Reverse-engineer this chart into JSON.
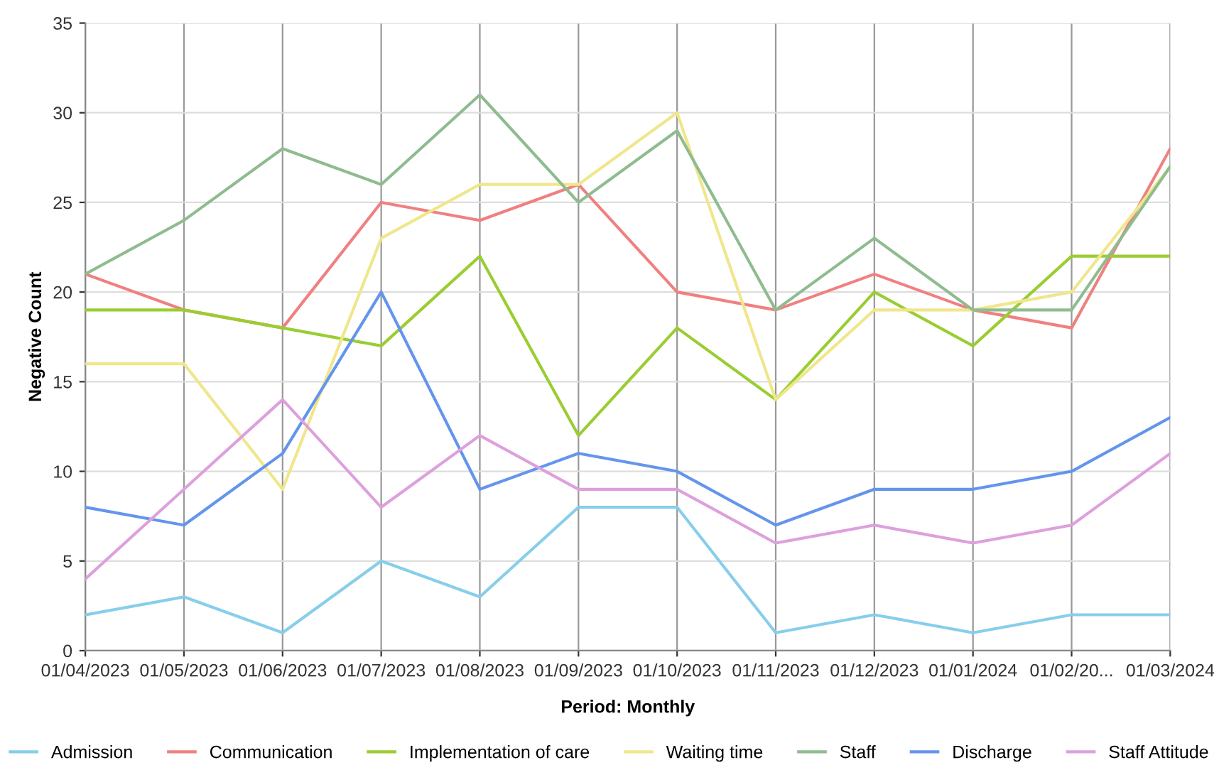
{
  "chart_data": {
    "type": "line",
    "xlabel": "Period: Monthly",
    "ylabel": "Negative Count",
    "categories": [
      "01/04/2023",
      "01/05/2023",
      "01/06/2023",
      "01/07/2023",
      "01/08/2023",
      "01/09/2023",
      "01/10/2023",
      "01/11/2023",
      "01/12/2023",
      "01/01/2024",
      "01/02/20...",
      "01/03/2024"
    ],
    "series": [
      {
        "name": "Admission",
        "color": "#87ceeb",
        "values": [
          2,
          3,
          1,
          5,
          3,
          8,
          8,
          1,
          2,
          1,
          2,
          2
        ]
      },
      {
        "name": "Communication",
        "color": "#f08080",
        "values": [
          21,
          19,
          18,
          25,
          24,
          26,
          20,
          19,
          21,
          19,
          18,
          28
        ]
      },
      {
        "name": "Implementation of care",
        "color": "#9acd32",
        "values": [
          19,
          19,
          18,
          17,
          22,
          12,
          18,
          14,
          20,
          17,
          22,
          22
        ]
      },
      {
        "name": "Waiting time",
        "color": "#f0e68c",
        "values": [
          16,
          16,
          9,
          23,
          26,
          26,
          30,
          14,
          19,
          19,
          20,
          27
        ]
      },
      {
        "name": "Staff",
        "color": "#8fbc8f",
        "values": [
          21,
          24,
          28,
          26,
          31,
          25,
          29,
          19,
          23,
          19,
          19,
          27
        ]
      },
      {
        "name": "Discharge",
        "color": "#6495ed",
        "values": [
          8,
          7,
          11,
          20,
          9,
          11,
          10,
          7,
          9,
          9,
          10,
          13
        ]
      },
      {
        "name": "Staff Attitude",
        "color": "#dda0dd",
        "values": [
          4,
          9,
          14,
          8,
          12,
          9,
          9,
          6,
          7,
          6,
          7,
          11
        ]
      }
    ],
    "ylim": [
      0,
      35
    ],
    "yticks": [
      0,
      5,
      10,
      15,
      20,
      25,
      30,
      35
    ],
    "grid": true,
    "legend": "bottom",
    "marker": "none",
    "line_style": "solid"
  }
}
